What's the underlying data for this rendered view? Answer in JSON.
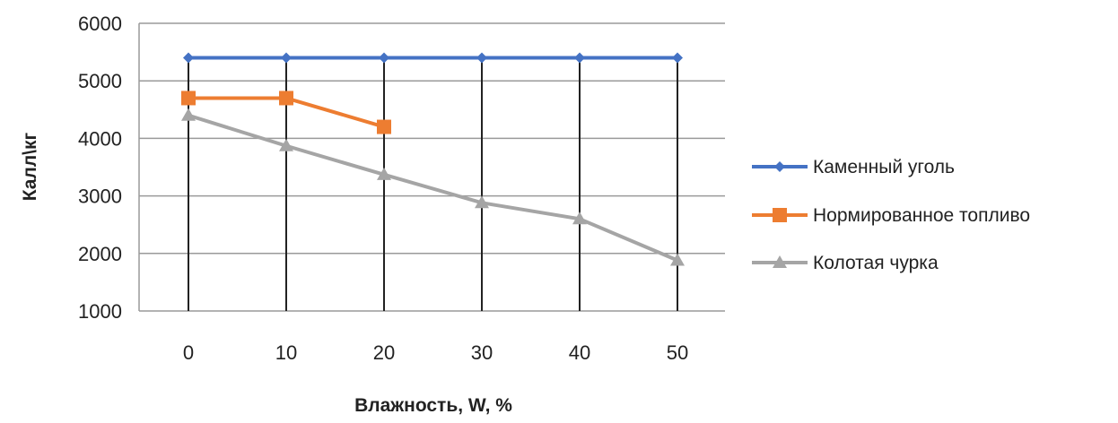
{
  "chart_data": {
    "type": "line",
    "xlabel": "Влажность, W, %",
    "ylabel": "Калл\\кг",
    "x": [
      0,
      10,
      20,
      30,
      40,
      50
    ],
    "x_tick_labels": [
      "0",
      "10",
      "20",
      "30",
      "40",
      "50"
    ],
    "y_tick_labels": [
      "1000",
      "2000",
      "3000",
      "4000",
      "5000",
      "6000"
    ],
    "ylim": [
      1000,
      6000
    ],
    "grid": "horizontal and vertical",
    "legend": "right",
    "series": [
      {
        "name": "Каменный уголь",
        "color": "#4472c4",
        "marker": "diamond",
        "values": [
          5400,
          5400,
          5400,
          5400,
          5400,
          5400
        ]
      },
      {
        "name": "Нормированное топливо",
        "color": "#ed7d31",
        "marker": "square",
        "values": [
          4700,
          4700,
          4200,
          null,
          null,
          null
        ]
      },
      {
        "name": "Колотая чурка",
        "color": "#a5a5a5",
        "marker": "triangle",
        "values": [
          4400,
          3870,
          3370,
          2880,
          2600,
          1880
        ]
      }
    ]
  }
}
